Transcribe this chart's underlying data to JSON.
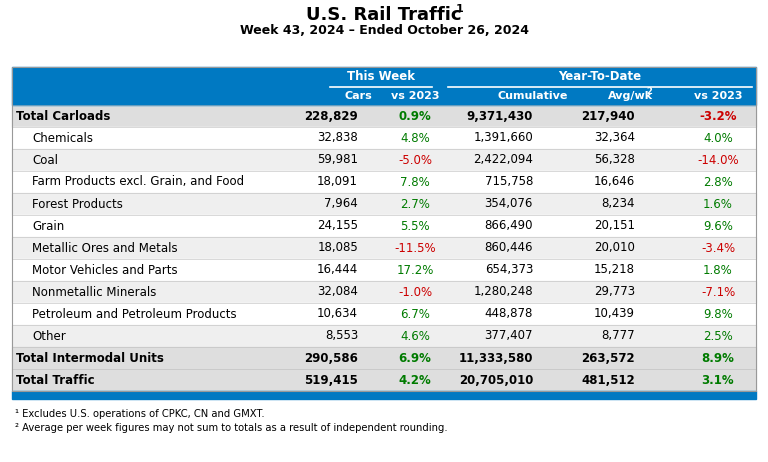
{
  "title": "U.S. Rail Traffic",
  "title_sup": "1",
  "subtitle": "Week 43, 2024 – Ended October 26, 2024",
  "header_group1": "This Week",
  "header_group2": "Year-To-Date",
  "rows": [
    {
      "label": "Total Carloads",
      "bold": true,
      "indent": false,
      "cars": "228,829",
      "vs2023_tw": "0.9%",
      "vs2023_tw_color": "green",
      "cumulative": "9,371,430",
      "avgwk": "217,940",
      "vs2023_ytd": "-3.2%",
      "vs2023_ytd_color": "red"
    },
    {
      "label": "Chemicals",
      "bold": false,
      "indent": true,
      "cars": "32,838",
      "vs2023_tw": "4.8%",
      "vs2023_tw_color": "green",
      "cumulative": "1,391,660",
      "avgwk": "32,364",
      "vs2023_ytd": "4.0%",
      "vs2023_ytd_color": "green"
    },
    {
      "label": "Coal",
      "bold": false,
      "indent": true,
      "cars": "59,981",
      "vs2023_tw": "-5.0%",
      "vs2023_tw_color": "red",
      "cumulative": "2,422,094",
      "avgwk": "56,328",
      "vs2023_ytd": "-14.0%",
      "vs2023_ytd_color": "red"
    },
    {
      "label": "Farm Products excl. Grain, and Food",
      "bold": false,
      "indent": true,
      "cars": "18,091",
      "vs2023_tw": "7.8%",
      "vs2023_tw_color": "green",
      "cumulative": "715,758",
      "avgwk": "16,646",
      "vs2023_ytd": "2.8%",
      "vs2023_ytd_color": "green"
    },
    {
      "label": "Forest Products",
      "bold": false,
      "indent": true,
      "cars": "7,964",
      "vs2023_tw": "2.7%",
      "vs2023_tw_color": "green",
      "cumulative": "354,076",
      "avgwk": "8,234",
      "vs2023_ytd": "1.6%",
      "vs2023_ytd_color": "green"
    },
    {
      "label": "Grain",
      "bold": false,
      "indent": true,
      "cars": "24,155",
      "vs2023_tw": "5.5%",
      "vs2023_tw_color": "green",
      "cumulative": "866,490",
      "avgwk": "20,151",
      "vs2023_ytd": "9.6%",
      "vs2023_ytd_color": "green"
    },
    {
      "label": "Metallic Ores and Metals",
      "bold": false,
      "indent": true,
      "cars": "18,085",
      "vs2023_tw": "-11.5%",
      "vs2023_tw_color": "red",
      "cumulative": "860,446",
      "avgwk": "20,010",
      "vs2023_ytd": "-3.4%",
      "vs2023_ytd_color": "red"
    },
    {
      "label": "Motor Vehicles and Parts",
      "bold": false,
      "indent": true,
      "cars": "16,444",
      "vs2023_tw": "17.2%",
      "vs2023_tw_color": "green",
      "cumulative": "654,373",
      "avgwk": "15,218",
      "vs2023_ytd": "1.8%",
      "vs2023_ytd_color": "green"
    },
    {
      "label": "Nonmetallic Minerals",
      "bold": false,
      "indent": true,
      "cars": "32,084",
      "vs2023_tw": "-1.0%",
      "vs2023_tw_color": "red",
      "cumulative": "1,280,248",
      "avgwk": "29,773",
      "vs2023_ytd": "-7.1%",
      "vs2023_ytd_color": "red"
    },
    {
      "label": "Petroleum and Petroleum Products",
      "bold": false,
      "indent": true,
      "cars": "10,634",
      "vs2023_tw": "6.7%",
      "vs2023_tw_color": "green",
      "cumulative": "448,878",
      "avgwk": "10,439",
      "vs2023_ytd": "9.8%",
      "vs2023_ytd_color": "green"
    },
    {
      "label": "Other",
      "bold": false,
      "indent": true,
      "cars": "8,553",
      "vs2023_tw": "4.6%",
      "vs2023_tw_color": "green",
      "cumulative": "377,407",
      "avgwk": "8,777",
      "vs2023_ytd": "2.5%",
      "vs2023_ytd_color": "green"
    },
    {
      "label": "Total Intermodal Units",
      "bold": true,
      "indent": false,
      "cars": "290,586",
      "vs2023_tw": "6.9%",
      "vs2023_tw_color": "green",
      "cumulative": "11,333,580",
      "avgwk": "263,572",
      "vs2023_ytd": "8.9%",
      "vs2023_ytd_color": "green"
    },
    {
      "label": "Total Traffic",
      "bold": true,
      "indent": false,
      "cars": "519,415",
      "vs2023_tw": "4.2%",
      "vs2023_tw_color": "green",
      "cumulative": "20,705,010",
      "avgwk": "481,512",
      "vs2023_ytd": "3.1%",
      "vs2023_ytd_color": "green"
    }
  ],
  "footnotes": [
    "¹ Excludes U.S. operations of CPKC, CN and GMXT.",
    "² Average per week figures may not sum to totals as a result of independent rounding."
  ],
  "blue": "#0079C2",
  "gray_bold": "#DEDEDE",
  "gray_alt": "#EFEFEF",
  "white": "#FFFFFF"
}
